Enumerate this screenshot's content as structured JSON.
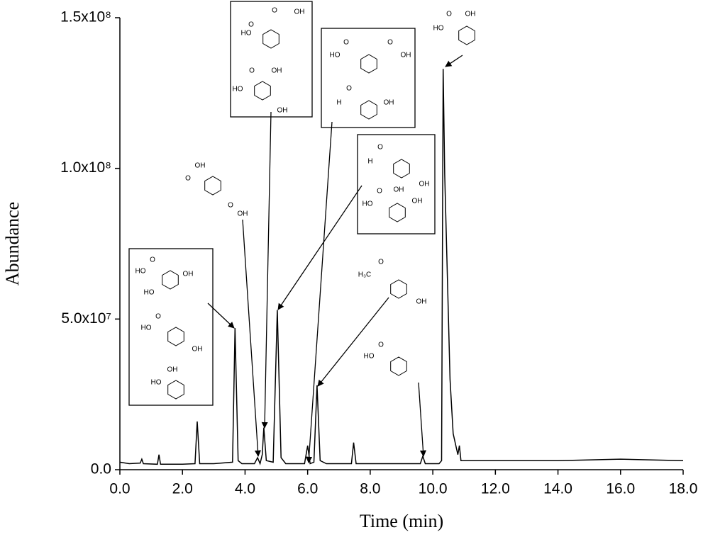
{
  "chart_data": {
    "type": "line",
    "x_label": "Time (min)",
    "y_label": "Abundance",
    "xlim": [
      0,
      18
    ],
    "ylim": [
      0,
      150000000
    ],
    "xticks": [
      {
        "value": 0,
        "label": "0.0"
      },
      {
        "value": 2,
        "label": "2.0"
      },
      {
        "value": 4,
        "label": "4.0"
      },
      {
        "value": 6,
        "label": "6.0"
      },
      {
        "value": 8,
        "label": "8.0"
      },
      {
        "value": 10,
        "label": "10.0"
      },
      {
        "value": 12,
        "label": "12.0"
      },
      {
        "value": 14,
        "label": "14.0"
      },
      {
        "value": 16,
        "label": "16.0"
      },
      {
        "value": 18,
        "label": "18.0"
      }
    ],
    "yticks": [
      {
        "value": 0,
        "label": "0.0"
      },
      {
        "value": 50000000,
        "label": "5.0x10⁷"
      },
      {
        "value": 100000000,
        "label": "1.0x10⁸"
      },
      {
        "value": 150000000,
        "label": "1.5x10⁸"
      }
    ],
    "grid": false,
    "series": [
      {
        "color": "#000000",
        "x": [
          0,
          0.3,
          0.65,
          0.7,
          0.75,
          1.2,
          1.25,
          1.3,
          2.0,
          2.4,
          2.47,
          2.55,
          3.0,
          3.6,
          3.68,
          3.78,
          3.9,
          4.3,
          4.4,
          4.48,
          4.55,
          4.6,
          4.68,
          4.9,
          5.03,
          5.15,
          5.3,
          5.9,
          6.0,
          6.08,
          6.2,
          6.3,
          6.4,
          6.6,
          7.4,
          7.47,
          7.55,
          8.5,
          9.6,
          9.68,
          9.76,
          10.2,
          10.28,
          10.33,
          10.38,
          10.45,
          10.55,
          10.65,
          10.8,
          10.85,
          10.9,
          12,
          14,
          16,
          18
        ],
        "values": [
          2500000.0,
          2000000.0,
          2200000.0,
          3500000.0,
          2000000.0,
          1800000.0,
          5000000.0,
          1800000.0,
          1800000.0,
          2000000.0,
          16000000.0,
          2000000.0,
          2000000.0,
          2500000.0,
          47000000.0,
          3000000.0,
          2000000.0,
          2000000.0,
          4000000.0,
          2000000.0,
          5000000.0,
          14000000.0,
          3000000.0,
          2500000.0,
          53000000.0,
          4000000.0,
          2000000.0,
          2000000.0,
          8000000.0,
          2000000.0,
          2500000.0,
          28000000.0,
          3000000.0,
          2000000.0,
          2000000.0,
          9000000.0,
          2000000.0,
          2000000.0,
          2000000.0,
          4500000.0,
          2000000.0,
          2000000.0,
          3000000.0,
          133000000.0,
          98000000.0,
          70000000.0,
          30000000.0,
          12000000.0,
          5000000.0,
          8000000.0,
          3000000.0,
          3000000.0,
          3000000.0,
          3500000.0,
          3000000.0
        ]
      }
    ],
    "annotations": [
      {
        "labels": [
          "O",
          "HO",
          "OH",
          "HO"
        ]
      },
      {
        "labels": [
          "O",
          "HO",
          "OH"
        ]
      },
      {
        "labels": [
          "HO",
          "OH"
        ]
      },
      {
        "labels": [
          "OH",
          "O",
          "O",
          "OH"
        ]
      },
      {
        "labels": [
          "O",
          "OH",
          "HO",
          "O"
        ]
      },
      {
        "labels": [
          "O",
          "OH",
          "HO",
          "OH"
        ]
      },
      {
        "labels": [
          "O",
          "O",
          "HO",
          "OH"
        ]
      },
      {
        "labels": [
          "O",
          "H",
          "OH"
        ]
      },
      {
        "labels": [
          "O",
          "H",
          "OH"
        ]
      },
      {
        "labels": [
          "O",
          "OH",
          "OH",
          "HO"
        ]
      },
      {
        "labels": [
          "O",
          "H₃C",
          "OH"
        ]
      },
      {
        "labels": [
          "O",
          "HO"
        ]
      },
      {
        "labels": [
          "HO",
          "O",
          "OH"
        ]
      }
    ]
  }
}
